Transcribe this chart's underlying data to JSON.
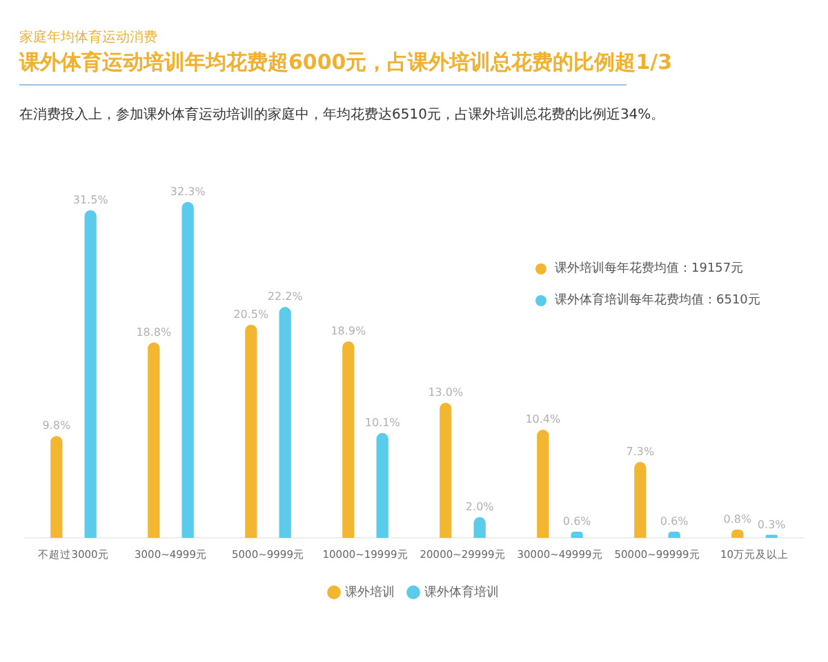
{
  "chart_data": {
    "type": "bar",
    "title": "课外体育运动培训年均花费超6000元，占课外培训总花费的比例超1/3",
    "categories": [
      "不超过3000元",
      "3000~4999元",
      "5000~9999元",
      "10000~19999元",
      "20000~29999元",
      "30000~49999元",
      "50000~99999元",
      "10万元及以上"
    ],
    "series": [
      {
        "name": "课外培训",
        "color": "#f3b630",
        "values": [
          9.8,
          18.8,
          20.5,
          18.9,
          13.0,
          10.4,
          7.3,
          0.8
        ],
        "value_labels": [
          "9.8%",
          "18.8%",
          "20.5%",
          "18.9%",
          "13.0%",
          "10.4%",
          "7.3%",
          "0.8%"
        ]
      },
      {
        "name": "课外体育培训",
        "color": "#5bcbeb",
        "values": [
          31.5,
          32.3,
          22.2,
          10.1,
          2.0,
          0.6,
          0.6,
          0.3
        ],
        "value_labels": [
          "31.5%",
          "32.3%",
          "22.2%",
          "10.1%",
          "2.0%",
          "0.6%",
          "0.6%",
          "0.3%"
        ]
      }
    ],
    "annotations": [
      "家庭年均体育运动消费",
      "在消费投入上，参加课外体育运动培训的家庭中，年均花费达6510元，占课外培训总花费的比例近34%。",
      "课外培训每年花费均值：19157元",
      "课外体育培训每年花费均值：6510元"
    ],
    "legend": "bottom",
    "grid": false
  }
}
